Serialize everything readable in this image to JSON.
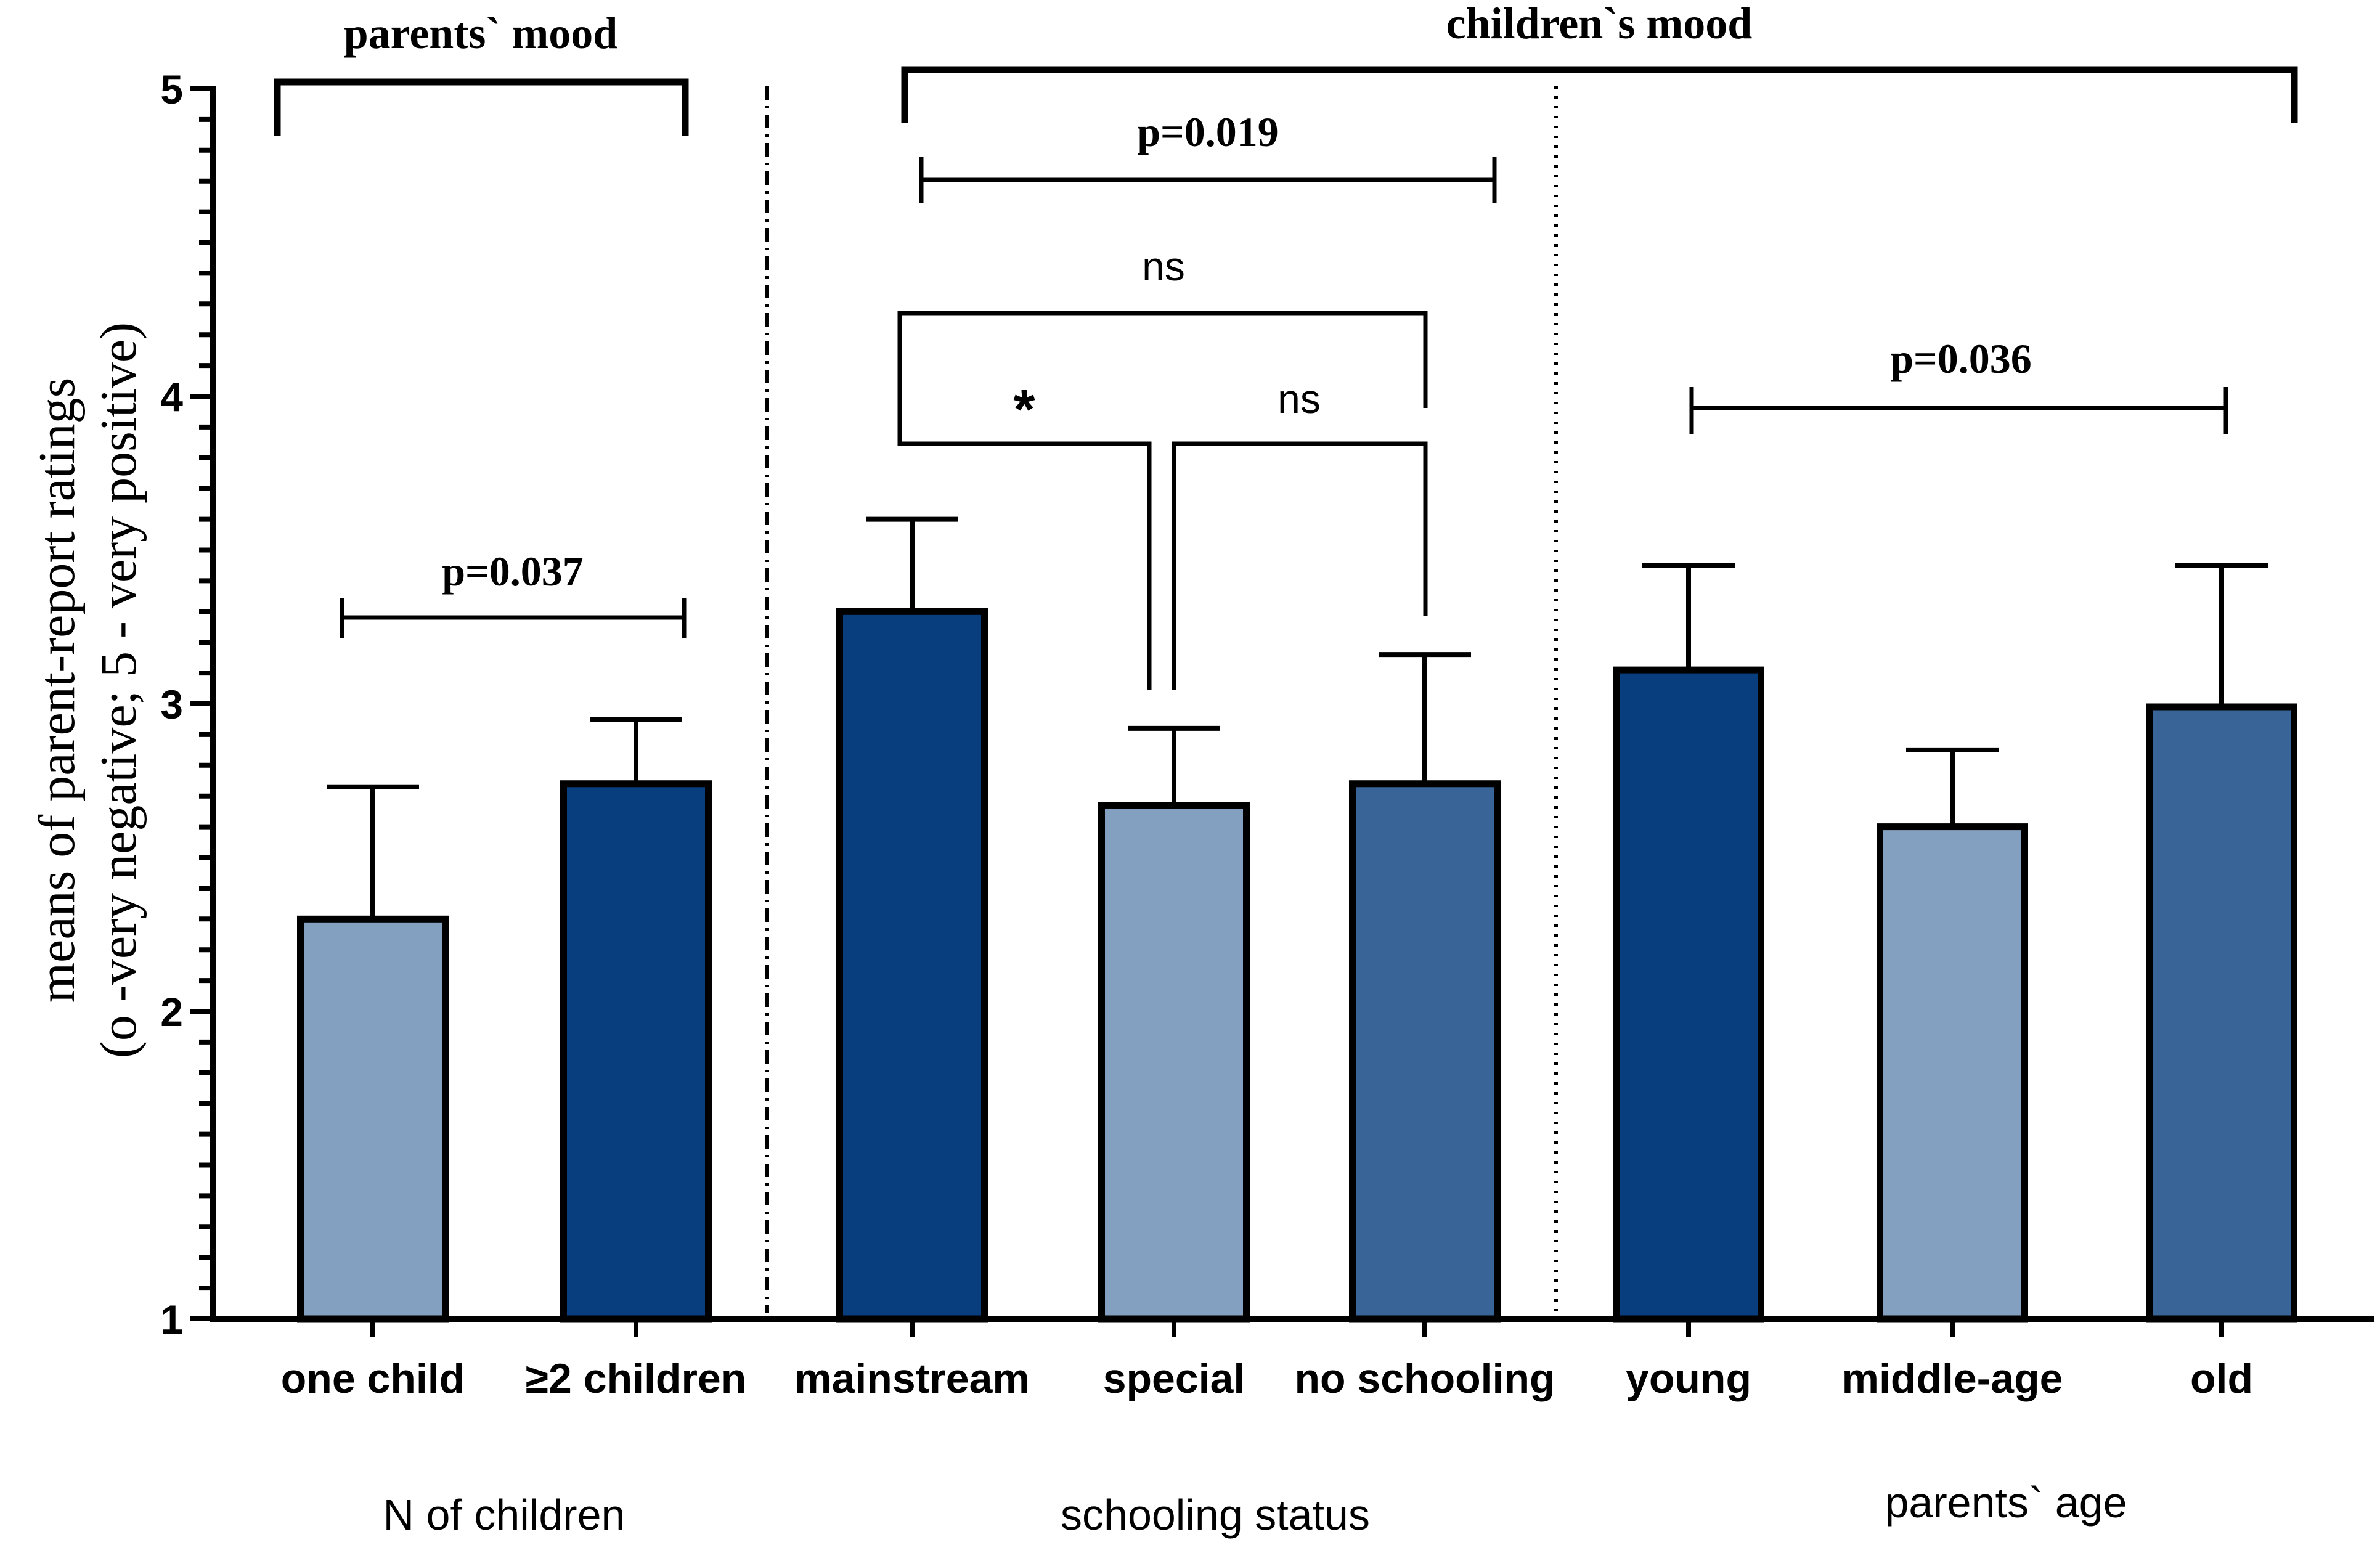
{
  "chart_data": {
    "type": "bar",
    "ylabel_line1": "means of  parent-report ratings",
    "ylabel_line2": "(o -very negative; 5 - very positive)",
    "ylim": [
      1,
      5
    ],
    "y_ticks": [
      "1",
      "2",
      "3",
      "4",
      "5"
    ],
    "groups": [
      {
        "label": "N of children",
        "mood": "parents` mood",
        "categories": [
          {
            "label": "one child",
            "value": 2.3,
            "error": 0.43,
            "color": "#83a0c1"
          },
          {
            "label": "≥2 children",
            "value": 2.74,
            "error": 0.21,
            "color": "#083e7e"
          }
        ]
      },
      {
        "label": "schooling status",
        "mood": "children`s mood",
        "categories": [
          {
            "label": "mainstream",
            "value": 3.3,
            "error": 0.3,
            "color": "#083e7e"
          },
          {
            "label": "special",
            "value": 2.67,
            "error": 0.25,
            "color": "#83a0c1"
          },
          {
            "label": "no schooling",
            "value": 2.74,
            "error": 0.42,
            "color": "#386498"
          }
        ]
      },
      {
        "label": "parents` age",
        "mood": "children`s mood",
        "categories": [
          {
            "label": "young",
            "value": 3.11,
            "error": 0.34,
            "color": "#083e7e"
          },
          {
            "label": "middle-age",
            "value": 2.6,
            "error": 0.25,
            "color": "#83a0c1"
          },
          {
            "label": "old",
            "value": 2.99,
            "error": 0.46,
            "color": "#386498"
          }
        ]
      }
    ],
    "annotations": [
      {
        "text": "parents` mood",
        "style": "bold-serif"
      },
      {
        "text": "children`s mood",
        "style": "bold-serif"
      },
      {
        "text": "p=0.037",
        "from": "one child",
        "to": "≥2 children",
        "style": "bold-serif"
      },
      {
        "text": "p=0.019",
        "from": "mainstream",
        "to": "no schooling",
        "style": "bold-serif"
      },
      {
        "text": "ns",
        "from": "mainstream",
        "to": "no schooling",
        "style": "sans"
      },
      {
        "text": "*",
        "from": "mainstream",
        "to": "special",
        "style": "bold-sans"
      },
      {
        "text": "ns",
        "from": "special",
        "to": "no schooling",
        "style": "sans"
      },
      {
        "text": "p=0.036",
        "from": "young",
        "to": "old",
        "style": "bold-serif"
      }
    ]
  }
}
